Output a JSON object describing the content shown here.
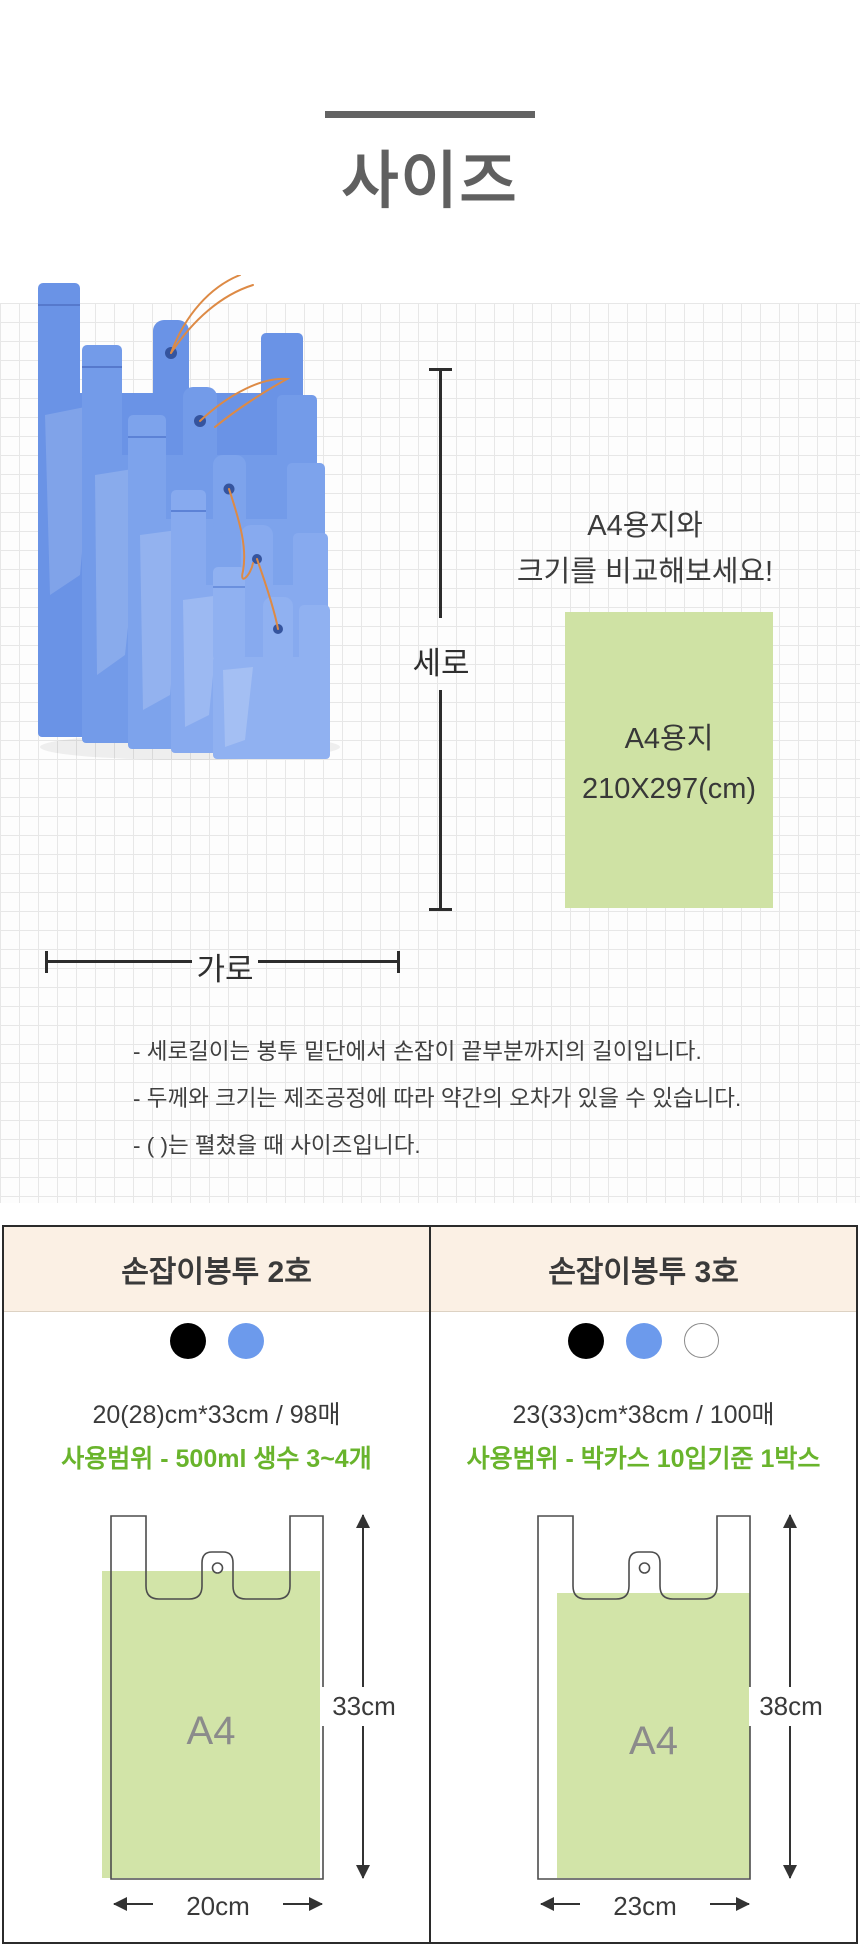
{
  "title": "사이즈",
  "compare": {
    "caption_line1": "A4용지와",
    "caption_line2": "크기를 비교해보세요!",
    "paper_label": "A4용지",
    "paper_size": "210X297(cm)",
    "height_label": "세로",
    "width_label": "가로"
  },
  "notes": [
    "- 세로길이는 봉투 밑단에서 손잡이 끝부분까지의 길이입니다.",
    "- 두께와 크기는 제조공정에 따라 약간의 오차가 있을 수 있습니다.",
    "- ( )는 펼쳤을 때 사이즈입니다."
  ],
  "swatch_colors": {
    "black": "#000000",
    "blue": "#6c9aec",
    "white": "#ffffff"
  },
  "products": [
    {
      "name": "손잡이봉투 2호",
      "colors": [
        "black",
        "blue"
      ],
      "size_text": "20(28)cm*33cm / 98매",
      "usage_text": "사용범위 - 500ml 생수 3~4개",
      "a4_label": "A4",
      "height_label": "33cm",
      "width_label": "20cm"
    },
    {
      "name": "손잡이봉투 3호",
      "colors": [
        "black",
        "blue",
        "white"
      ],
      "size_text": "23(33)cm*38cm / 100매",
      "usage_text": "사용범위 - 박카스 10입기준 1박스",
      "a4_label": "A4",
      "height_label": "38cm",
      "width_label": "23cm"
    }
  ],
  "accent_colors": {
    "bag_blue": "#6f97e8",
    "a4_green": "#d2e4a8",
    "usage_green": "#69b42c",
    "header_cream": "#fbf0e4"
  }
}
